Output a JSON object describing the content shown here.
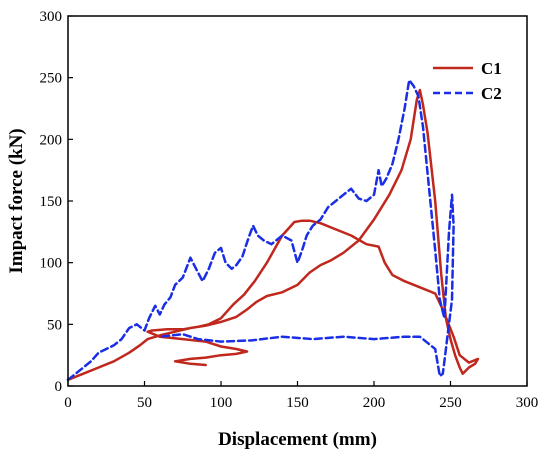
{
  "chart_data": {
    "type": "line",
    "title": "",
    "xlabel": "Displacement (mm)",
    "ylabel": "Impact force (kN)",
    "xlim": [
      0,
      300
    ],
    "ylim": [
      0,
      300
    ],
    "xticks": [
      0,
      50,
      100,
      150,
      200,
      250,
      300
    ],
    "yticks": [
      0,
      50,
      100,
      150,
      200,
      250,
      300
    ],
    "grid": false,
    "legend": "top-right",
    "series": [
      {
        "name": "C1",
        "color": "#c0281e",
        "style": "solid",
        "x": [
          0,
          10,
          20,
          30,
          40,
          47,
          52,
          60,
          70,
          80,
          90,
          100,
          110,
          117,
          123,
          130,
          140,
          150,
          158,
          165,
          172,
          180,
          190,
          200,
          210,
          218,
          224,
          228,
          230,
          232,
          235,
          240,
          244,
          247,
          250,
          253,
          256,
          258,
          262,
          266,
          268,
          262,
          256,
          252,
          245,
          240,
          230,
          220,
          212,
          207,
          203,
          195,
          185,
          175,
          165,
          158,
          153,
          148,
          140,
          130,
          122,
          115,
          108,
          100,
          92,
          85,
          75,
          65,
          55,
          52,
          60,
          75,
          90,
          100,
          110,
          117,
          110,
          100,
          90,
          80,
          75,
          70,
          80,
          90
        ],
        "y": [
          5,
          10,
          15,
          20,
          27,
          33,
          38,
          41,
          44,
          47,
          49,
          52,
          56,
          62,
          68,
          73,
          76,
          82,
          92,
          98,
          102,
          108,
          118,
          135,
          155,
          175,
          200,
          232,
          240,
          228,
          205,
          150,
          90,
          55,
          38,
          25,
          15,
          10,
          15,
          18,
          22,
          19,
          25,
          40,
          62,
          75,
          80,
          85,
          90,
          100,
          113,
          115,
          122,
          127,
          132,
          134,
          134,
          133,
          122,
          100,
          85,
          74,
          66,
          55,
          50,
          48,
          46,
          46,
          45,
          44,
          40,
          38,
          36,
          32,
          30,
          28,
          26,
          25,
          23,
          22,
          21,
          20,
          18,
          17
        ]
      },
      {
        "name": "C2",
        "color": "#1a2ee6",
        "style": "dashed",
        "x": [
          0,
          5,
          10,
          15,
          20,
          25,
          30,
          35,
          40,
          45,
          50,
          53,
          57,
          60,
          63,
          67,
          70,
          75,
          80,
          85,
          88,
          92,
          96,
          100,
          103,
          107,
          110,
          114,
          118,
          121,
          124,
          128,
          133,
          140,
          146,
          150,
          153,
          156,
          160,
          165,
          170,
          175,
          180,
          185,
          190,
          195,
          200,
          203,
          205,
          208,
          212,
          216,
          220,
          223,
          226,
          229,
          232,
          236,
          240,
          243,
          246,
          249,
          251,
          252,
          251,
          248,
          246,
          245,
          243,
          240,
          230,
          220,
          200,
          180,
          160,
          140,
          120,
          100,
          85,
          75,
          60
        ],
        "y": [
          5,
          10,
          15,
          20,
          27,
          30,
          33,
          38,
          47,
          50,
          45,
          55,
          65,
          58,
          66,
          72,
          82,
          88,
          104,
          92,
          85,
          95,
          108,
          112,
          100,
          95,
          98,
          105,
          120,
          130,
          122,
          118,
          115,
          122,
          118,
          100,
          110,
          122,
          130,
          135,
          145,
          150,
          155,
          160,
          152,
          150,
          155,
          175,
          162,
          168,
          180,
          200,
          225,
          248,
          243,
          235,
          210,
          160,
          110,
          70,
          55,
          125,
          155,
          130,
          70,
          40,
          20,
          10,
          8,
          30,
          40,
          40,
          38,
          40,
          38,
          40,
          37,
          36,
          38,
          42,
          40
        ]
      }
    ]
  }
}
